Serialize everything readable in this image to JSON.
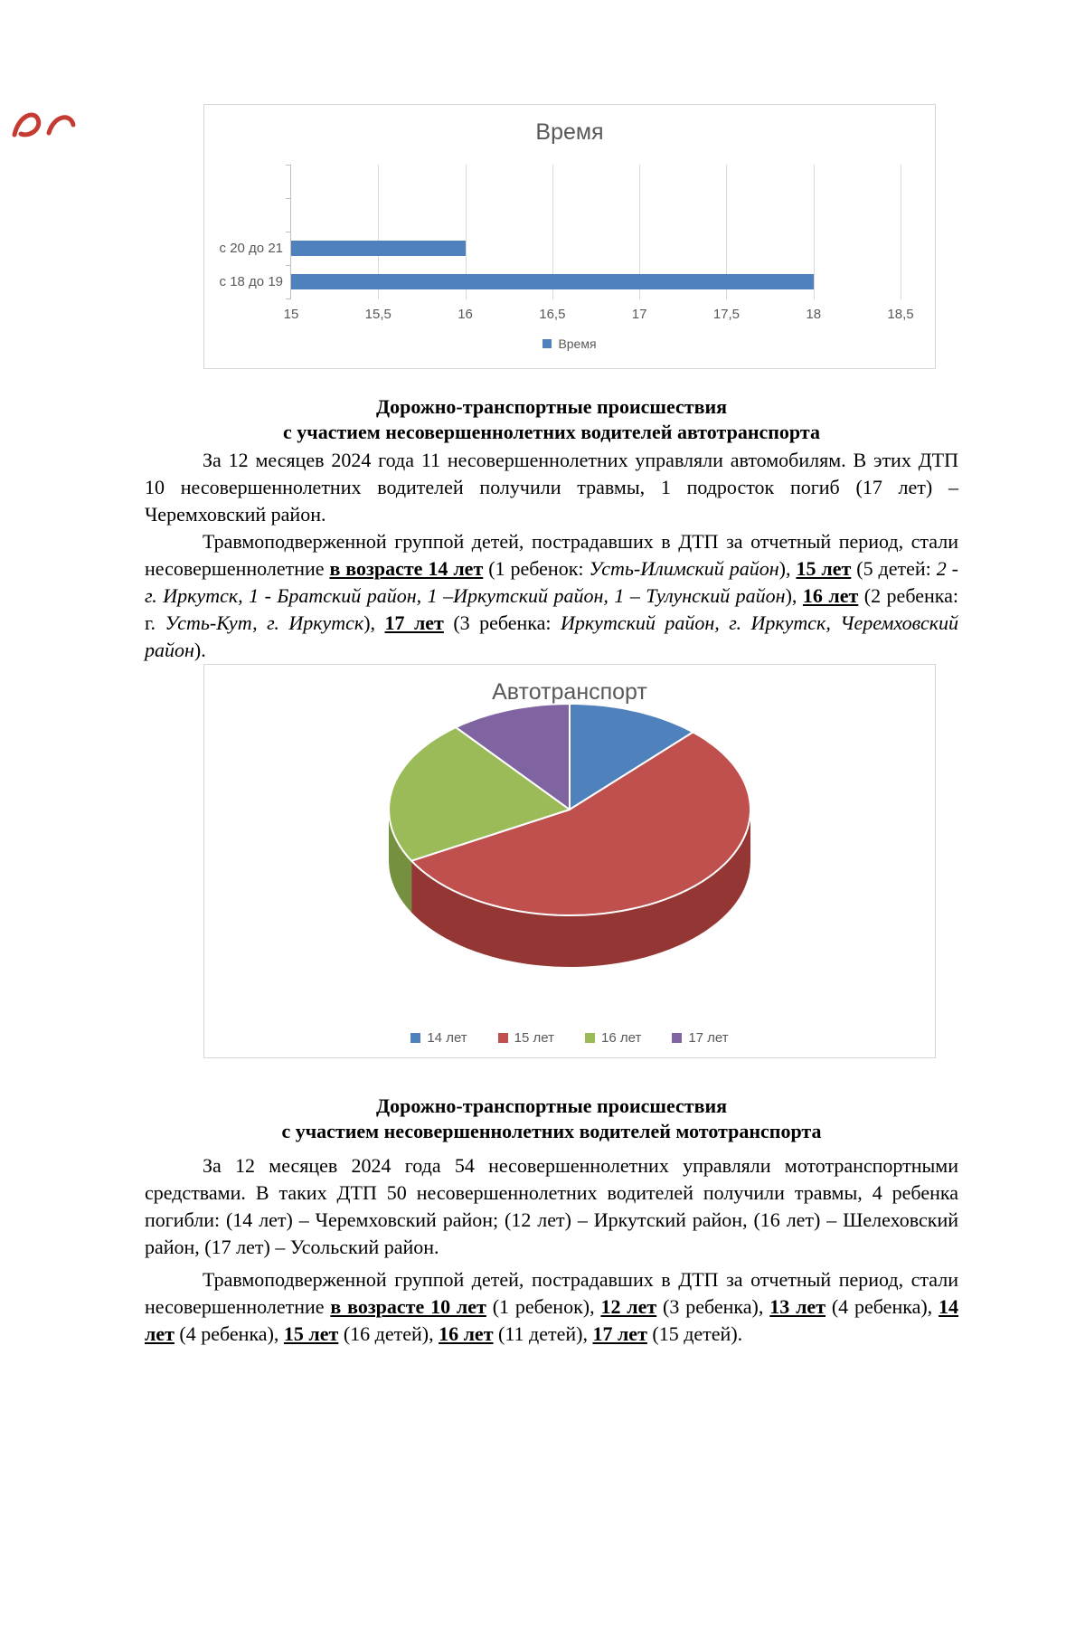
{
  "page": {
    "corner_mark_color": "#c43b33"
  },
  "chart_data": [
    {
      "type": "bar",
      "orientation": "horizontal",
      "title": "Время",
      "legend": [
        "Время"
      ],
      "legend_position": "bottom",
      "categories": [
        "с 20 до 21",
        "с 18 до 19"
      ],
      "values": [
        16,
        18
      ],
      "x_min": 15,
      "x_max": 18.5,
      "x_step": 0.5,
      "x_tick_labels": [
        "15",
        "15,5",
        "16",
        "16,5",
        "17",
        "17,5",
        "18",
        "18,5"
      ],
      "bar_color": "#4f81bd",
      "gridlines": true
    },
    {
      "type": "pie",
      "style": "3d",
      "title": "Автотранспорт",
      "legend_position": "bottom",
      "labels": [
        "14 лет",
        "15 лет",
        "16 лет",
        "17 лет"
      ],
      "values": [
        1,
        5,
        2,
        3
      ],
      "colors": [
        "#4f81bd",
        "#c0504d",
        "#9bbb59",
        "#8064a2"
      ],
      "side_colors": [
        "#355980",
        "#943734",
        "#75903e",
        "#5a4675"
      ],
      "depth": 57,
      "render_angles": [
        [
          0,
          43
        ],
        [
          43,
          241
        ],
        [
          241,
          321
        ],
        [
          321,
          360
        ]
      ]
    }
  ],
  "sections": {
    "auto": {
      "heading1": "Дорожно-транспортные происшествия",
      "heading2": "с участием несовершеннолетних водителей автотранспорта",
      "para1": [
        {
          "t": "За 12 месяцев 2024 года 11 несовершеннолетних управляли автомобилям. В этих ДТП 10 несовершеннолетних водителей получили травмы, 1 подросток погиб (17 лет) – Черемховский район.",
          "s": "n"
        }
      ],
      "para2": [
        {
          "t": "Травмоподверженной группой детей, пострадавших в ДТП за отчетный период, стали несовершеннолетние ",
          "s": "n"
        },
        {
          "t": "в возрасте 14 лет",
          "s": "bu"
        },
        {
          "t": " (1 ребенок: ",
          "s": "n"
        },
        {
          "t": "Усть-Илимский район",
          "s": "i"
        },
        {
          "t": "), ",
          "s": "n"
        },
        {
          "t": "15 лет",
          "s": "bu"
        },
        {
          "t": " (5 детей: ",
          "s": "n"
        },
        {
          "t": "2 - г. Иркутск, 1 - Братский район, 1 –Иркутский район, 1 – Тулунский район",
          "s": "i"
        },
        {
          "t": "), ",
          "s": "n"
        },
        {
          "t": "16 лет",
          "s": "bu"
        },
        {
          "t": " (2 ребенка: г. ",
          "s": "n"
        },
        {
          "t": "Усть-Кут, г. Иркутск",
          "s": "i"
        },
        {
          "t": "), ",
          "s": "n"
        },
        {
          "t": "17 лет",
          "s": "bu"
        },
        {
          "t": " (3 ребенка: ",
          "s": "n"
        },
        {
          "t": "Иркутский район, г. Иркутск, Черемховский район",
          "s": "i"
        },
        {
          "t": ").",
          "s": "n"
        }
      ]
    },
    "moto": {
      "heading1": "Дорожно-транспортные происшествия",
      "heading2": "с участием несовершеннолетних водителей мототранспорта",
      "para1": [
        {
          "t": "За 12 месяцев 2024 года 54 несовершеннолетних управляли мототранспортными средствами. В таких ДТП 50 несовершеннолетних водителей получили травмы, 4 ребенка погибли: (14 лет) – Черемховский район; (12 лет) – Иркутский район, (16 лет) – Шелеховский район, (17 лет) – Усольский район.",
          "s": "n"
        }
      ],
      "para2": [
        {
          "t": "Травмоподверженной группой детей, пострадавших в ДТП за отчетный период, стали несовершеннолетние ",
          "s": "n"
        },
        {
          "t": "в возрасте 10 лет",
          "s": "bu"
        },
        {
          "t": " (1 ребенок), ",
          "s": "n"
        },
        {
          "t": "12 лет",
          "s": "bu"
        },
        {
          "t": " (3 ребенка), ",
          "s": "n"
        },
        {
          "t": "13 лет",
          "s": "bu"
        },
        {
          "t": " (4 ребенка), ",
          "s": "n"
        },
        {
          "t": "14 лет",
          "s": "bu"
        },
        {
          "t": " (4 ребенка), ",
          "s": "n"
        },
        {
          "t": "15 лет",
          "s": "bu"
        },
        {
          "t": " (16 детей), ",
          "s": "n"
        },
        {
          "t": "16 лет",
          "s": "bu"
        },
        {
          "t": " (11 детей), ",
          "s": "n"
        },
        {
          "t": "17 лет",
          "s": "bu"
        },
        {
          "t": " (15 детей).",
          "s": "n"
        }
      ]
    }
  }
}
